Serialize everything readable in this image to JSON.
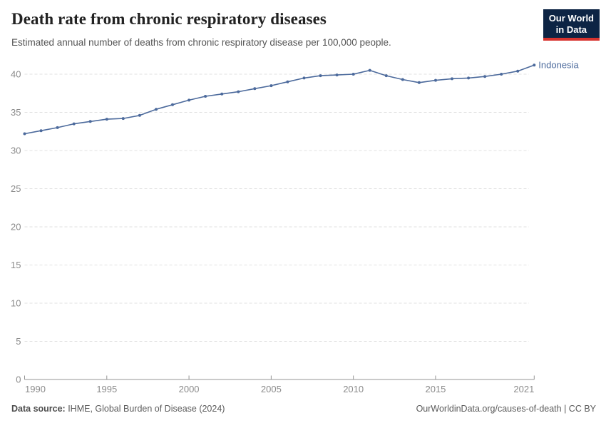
{
  "header": {
    "title": "Death rate from chronic respiratory diseases",
    "subtitle": "Estimated annual number of deaths from chronic respiratory disease per 100,000 people."
  },
  "logo": {
    "line1": "Our World",
    "line2": "in Data",
    "bg_color": "#0d2444",
    "stripe_color": "#d7332e"
  },
  "chart_data": {
    "type": "line",
    "title": "Death rate from chronic respiratory diseases",
    "subtitle": "Estimated annual number of deaths from chronic respiratory disease per 100,000 people.",
    "x": [
      1990,
      1991,
      1992,
      1993,
      1994,
      1995,
      1996,
      1997,
      1998,
      1999,
      2000,
      2001,
      2002,
      2003,
      2004,
      2005,
      2006,
      2007,
      2008,
      2009,
      2010,
      2011,
      2012,
      2013,
      2014,
      2015,
      2016,
      2017,
      2018,
      2019,
      2020,
      2021
    ],
    "series": [
      {
        "name": "Indonesia",
        "color": "#4c6a9c",
        "values": [
          32.2,
          32.6,
          33.0,
          33.5,
          33.8,
          34.1,
          34.2,
          34.6,
          35.4,
          36.0,
          36.6,
          37.1,
          37.4,
          37.7,
          38.1,
          38.5,
          39.0,
          39.5,
          39.8,
          39.9,
          40.0,
          40.5,
          39.8,
          39.3,
          38.9,
          39.2,
          39.4,
          39.5,
          39.7,
          40.0,
          40.4,
          41.2
        ]
      }
    ],
    "xlim": [
      1990,
      2021
    ],
    "ylim": [
      0,
      40
    ],
    "yticks": [
      0,
      5,
      10,
      15,
      20,
      25,
      30,
      35,
      40
    ],
    "xticks": [
      1990,
      1995,
      2000,
      2005,
      2010,
      2015,
      2021
    ],
    "grid": "horizontal-dashed",
    "grid_color": "#e0e0e0",
    "axis_color": "#949494",
    "tick_label_color": "#8b8b8b",
    "legend_position": "end-of-line-label",
    "xlabel": "",
    "ylabel": ""
  },
  "footer": {
    "source_label": "Data source:",
    "source_text": " IHME, Global Burden of Disease (2024)",
    "right_text": "OurWorldinData.org/causes-of-death | CC BY"
  }
}
